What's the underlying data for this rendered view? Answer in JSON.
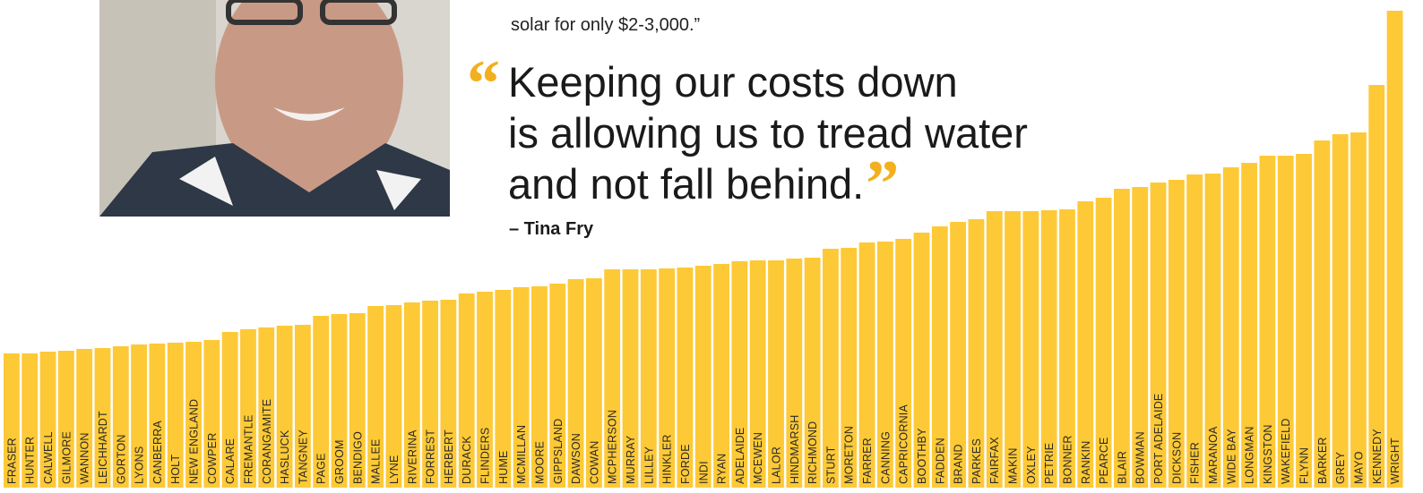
{
  "chart_data": {
    "type": "bar",
    "color": "#fdc936",
    "categories": [
      "FRASER",
      "HUNTER",
      "CALWELL",
      "GILMORE",
      "WANNON",
      "LEICHHARDT",
      "GORTON",
      "LYONS",
      "CANBERRA",
      "HOLT",
      "NEW ENGLAND",
      "COWPER",
      "CALARE",
      "FREMANTLE",
      "CORANGAMITE",
      "HASLUCK",
      "TANGNEY",
      "PAGE",
      "GROOM",
      "BENDIGO",
      "MALLEE",
      "LYNE",
      "RIVERINA",
      "FORREST",
      "HERBERT",
      "DURACK",
      "FLINDERS",
      "HUME",
      "MCMILLAN",
      "MOORE",
      "GIPPSLAND",
      "DAWSON",
      "COWAN",
      "MCPHERSON",
      "MURRAY",
      "LILLEY",
      "HINKLER",
      "FORDE",
      "INDI",
      "RYAN",
      "ADELAIDE",
      "MCEWEN",
      "LALOR",
      "HINDMARSH",
      "RICHMOND",
      "STURT",
      "MORETON",
      "FARRER",
      "CANNING",
      "CAPRICORNIA",
      "BOOTHBY",
      "FADDEN",
      "BRAND",
      "PARKES",
      "FAIRFAX",
      "MAKIN",
      "OXLEY",
      "PETRIE",
      "BONNER",
      "RANKIN",
      "PEARCE",
      "BLAIR",
      "BOWMAN",
      "PORT ADELAIDE",
      "DICKSON",
      "FISHER",
      "MARANOA",
      "WIDE BAY",
      "LONGMAN",
      "KINGSTON",
      "WAKEFIELD",
      "FLYNN",
      "BARKER",
      "GREY",
      "MAYO",
      "KENNEDY",
      "WRIGHT"
    ],
    "values": [
      150,
      150,
      152,
      153,
      155,
      156,
      158,
      160,
      161,
      162,
      163,
      165,
      174,
      177,
      179,
      181,
      182,
      192,
      194,
      195,
      203,
      204,
      207,
      209,
      210,
      217,
      219,
      221,
      224,
      225,
      228,
      233,
      234,
      244,
      244,
      244,
      245,
      246,
      248,
      250,
      253,
      254,
      254,
      256,
      257,
      267,
      268,
      274,
      275,
      278,
      285,
      292,
      297,
      300,
      309,
      309,
      309,
      310,
      311,
      320,
      324,
      334,
      336,
      341,
      344,
      350,
      351,
      358,
      363,
      371,
      371,
      373,
      388,
      395,
      397,
      450,
      533
    ]
  },
  "article": {
    "body_tail": "solar for only $2-3,000.”",
    "open_mark": "“",
    "close_mark": "”",
    "quote": [
      "Keeping our costs down",
      "is allowing us to tread water",
      "and not fall behind."
    ],
    "attribution": "– Tina Fry"
  }
}
